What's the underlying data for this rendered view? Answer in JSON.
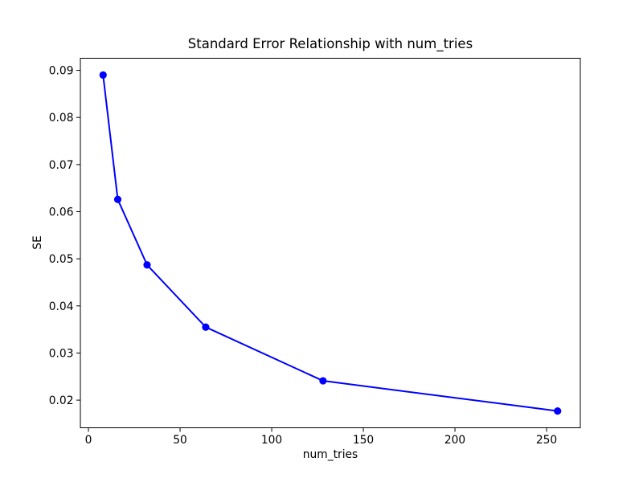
{
  "figure": {
    "background_color": "#ffffff",
    "text_color": "#000000"
  },
  "chart_data": {
    "type": "line",
    "title": "Standard Error Relationship with num_tries",
    "xlabel": "num_tries",
    "ylabel": "SE",
    "x": [
      8,
      16,
      32,
      64,
      128,
      256
    ],
    "y": [
      0.089,
      0.0626,
      0.0487,
      0.0355,
      0.0241,
      0.0177
    ],
    "line_color": "#0000ff",
    "marker": "circle",
    "marker_radius": 4.6,
    "line_width": 2,
    "xlim": [
      -4.4,
      268.4
    ],
    "ylim": [
      0.014135,
      0.092565
    ],
    "xticks": [
      0,
      50,
      100,
      150,
      200,
      250
    ],
    "xtick_labels": [
      "0",
      "50",
      "100",
      "150",
      "200",
      "250"
    ],
    "yticks": [
      0.02,
      0.03,
      0.04,
      0.05,
      0.06,
      0.07,
      0.08,
      0.09
    ],
    "ytick_labels": [
      "0.02",
      "0.03",
      "0.04",
      "0.05",
      "0.06",
      "0.07",
      "0.08",
      "0.09"
    ],
    "grid": false,
    "legend": null
  }
}
